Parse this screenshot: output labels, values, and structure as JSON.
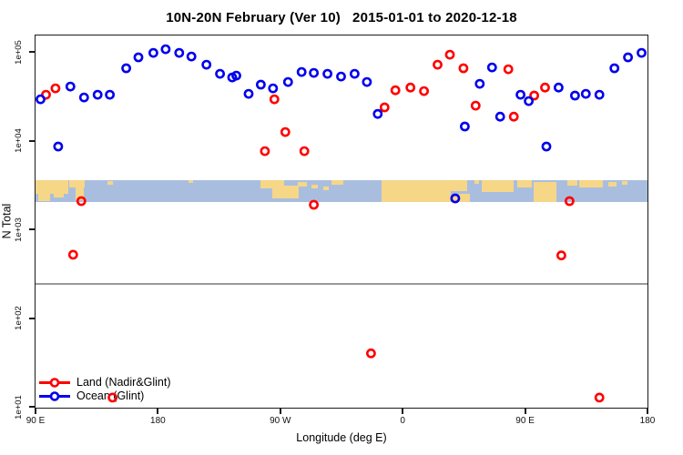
{
  "chart_data": {
    "type": "scatter",
    "title": "10N-20N February (Ver 10)   2015-01-01 to 2020-12-18",
    "xlabel": "Longitude (deg E)",
    "ylabel": "N Total",
    "x_range": [
      90,
      540
    ],
    "y_log_range": [
      10,
      157000
    ],
    "grid": false,
    "legend_position": "bottom-left-inside",
    "x_ticks": [
      {
        "label": "90 E",
        "value": 90
      },
      {
        "label": "180",
        "value": 180
      },
      {
        "label": "90 W",
        "value": 270
      },
      {
        "label": "0",
        "value": 360
      },
      {
        "label": "90 E",
        "value": 450
      },
      {
        "label": "180",
        "value": 540
      }
    ],
    "y_ticks": [
      {
        "label": "1e+01",
        "value": 10
      },
      {
        "label": "1e+02",
        "value": 100
      },
      {
        "label": "1e+03",
        "value": 1000
      },
      {
        "label": "1e+04",
        "value": 10000
      },
      {
        "label": "1e+05",
        "value": 100000
      }
    ],
    "reference_line": {
      "value": 250,
      "color": "#999999"
    },
    "series": [
      {
        "name": "Land (Nadir&Glint)",
        "color": "#ff0000",
        "marker": "open-circle",
        "points": [
          [
            97,
            33700
          ],
          [
            104,
            39800
          ],
          [
            117,
            530
          ],
          [
            123,
            2130
          ],
          [
            146,
            13
          ],
          [
            258,
            7800
          ],
          [
            265,
            30000
          ],
          [
            273,
            12800
          ],
          [
            287,
            7800
          ],
          [
            294,
            1940
          ],
          [
            336,
            41
          ],
          [
            346,
            24300
          ],
          [
            354,
            37900
          ],
          [
            365,
            40700
          ],
          [
            375,
            37100
          ],
          [
            385,
            73600
          ],
          [
            394,
            95300
          ],
          [
            404,
            67000
          ],
          [
            413,
            25400
          ],
          [
            437,
            65300
          ],
          [
            441,
            19100
          ],
          [
            456,
            33000
          ],
          [
            464,
            40700
          ],
          [
            476,
            520
          ],
          [
            482,
            2130
          ],
          [
            504,
            13
          ]
        ]
      },
      {
        "name": "Ocean (Glint)",
        "color": "#0000ee",
        "marker": "open-circle",
        "points": [
          [
            93,
            30000
          ],
          [
            106,
            8800
          ],
          [
            115,
            41700
          ],
          [
            125,
            31400
          ],
          [
            135,
            33700
          ],
          [
            144,
            33700
          ],
          [
            156,
            67000
          ],
          [
            165,
            89000
          ],
          [
            176,
            100000
          ],
          [
            185,
            110000
          ],
          [
            195,
            100000
          ],
          [
            204,
            91000
          ],
          [
            215,
            73600
          ],
          [
            225,
            58100
          ],
          [
            234,
            52900
          ],
          [
            237,
            55400
          ],
          [
            246,
            34500
          ],
          [
            255,
            43800
          ],
          [
            264,
            39800
          ],
          [
            275,
            47000
          ],
          [
            285,
            60900
          ],
          [
            294,
            59500
          ],
          [
            304,
            58100
          ],
          [
            314,
            54100
          ],
          [
            324,
            58100
          ],
          [
            333,
            47000
          ],
          [
            341,
            20500
          ],
          [
            398,
            2290
          ],
          [
            405,
            14800
          ],
          [
            416,
            44800
          ],
          [
            425,
            68500
          ],
          [
            431,
            19100
          ],
          [
            446,
            33700
          ],
          [
            452,
            28600
          ],
          [
            465,
            8800
          ],
          [
            474,
            40700
          ],
          [
            486,
            33000
          ],
          [
            494,
            34500
          ],
          [
            504,
            33700
          ],
          [
            515,
            67000
          ],
          [
            525,
            89000
          ],
          [
            535,
            100000
          ]
        ]
      }
    ]
  },
  "map_strip": {
    "description": "world coastline band 10N-20N",
    "ocean_color": "#a9bedf",
    "land_color": "#f6d687",
    "y_top_value": 3700,
    "y_bottom_value": 2100,
    "land_patches": [
      [
        0,
        0,
        36,
        15
      ],
      [
        3,
        14,
        13,
        9
      ],
      [
        20,
        12,
        11,
        7
      ],
      [
        37,
        0,
        17,
        8
      ],
      [
        44,
        6,
        9,
        16
      ],
      [
        79,
        1,
        6,
        4
      ],
      [
        168,
        0,
        5,
        3
      ],
      [
        247,
        0,
        26,
        9
      ],
      [
        260,
        6,
        29,
        14
      ],
      [
        288,
        2,
        10,
        5
      ],
      [
        303,
        5,
        7,
        4
      ],
      [
        316,
        7,
        6,
        4
      ],
      [
        325,
        0,
        13,
        5
      ],
      [
        380,
        0,
        76,
        24
      ],
      [
        452,
        0,
        22,
        12
      ],
      [
        458,
        15,
        19,
        9
      ],
      [
        482,
        0,
        5,
        4
      ],
      [
        490,
        0,
        35,
        13
      ],
      [
        529,
        0,
        16,
        8
      ],
      [
        547,
        2,
        25,
        22
      ],
      [
        584,
        0,
        11,
        6
      ],
      [
        597,
        0,
        26,
        8
      ],
      [
        629,
        2,
        9,
        5
      ],
      [
        644,
        1,
        6,
        4
      ]
    ]
  }
}
